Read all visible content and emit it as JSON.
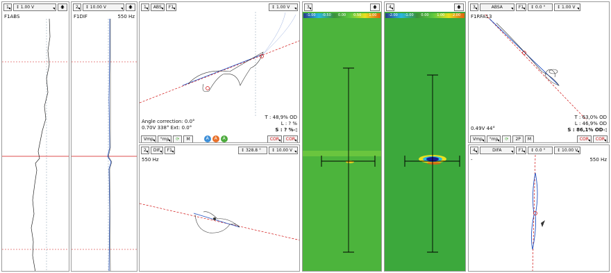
{
  "strip1": {
    "num": "1",
    "gain": "1.00 V",
    "title": "F1ABS"
  },
  "strip2": {
    "num": "2",
    "gain": "10.00 V",
    "title": "F1DIF",
    "freq": "550 Hz"
  },
  "lis1": {
    "num": "1",
    "mode": "ABS",
    "freq": "F1",
    "gain": "1.00 V",
    "angle_correction": "Angle correction:  0.0°",
    "reading": "0.70V 338°  Ext: 0.0°",
    "t": "T : 48,9% OD",
    "l": "L : ? %",
    "s": "S : ? %◁",
    "vmp": "Vmp",
    "mp": "°mp",
    "m": "M",
    "cor1": "COR",
    "cor2": "COR",
    "b1": "A",
    "b2": "A",
    "b3": "A"
  },
  "lis2": {
    "num": "2",
    "mode": "DIF",
    "freq": "F1",
    "angle": "328.8 °",
    "gain": "10.00 V",
    "freq_label": "550 Hz"
  },
  "cscan3": {
    "num": "3",
    "scale": [
      "-1.00",
      "-0.50",
      "0.00",
      "0.50",
      "1.00"
    ]
  },
  "cscan4": {
    "num": "4",
    "scale": [
      "-2.00",
      "-1.00",
      "0.00",
      "1.00",
      "2.00"
    ]
  },
  "lis3": {
    "num": "3",
    "mode": "ABSA",
    "freq": "F1",
    "angle": "0.0 °",
    "gain": "1.00 V",
    "title": "F1RFA13",
    "reading": "0.49V 44°",
    "t": "T : 63,0% OD",
    "l": "L : 46,9% OD",
    "s": "S : 86,1% OD◁",
    "vmp": "Vmp",
    "mp": "°mp",
    "p2": "2P",
    "m": "M",
    "cor1": "COR",
    "cor2": "COR"
  },
  "lis4": {
    "num": "4",
    "mode": "DIFA",
    "freq": "F1",
    "angle": "0.0 °",
    "gain": "10.00 V",
    "dash": "-",
    "freq_label": "550 Hz"
  },
  "colors": {
    "red": "#d01010",
    "blue": "#2050c0",
    "green": "#4caa3c"
  }
}
